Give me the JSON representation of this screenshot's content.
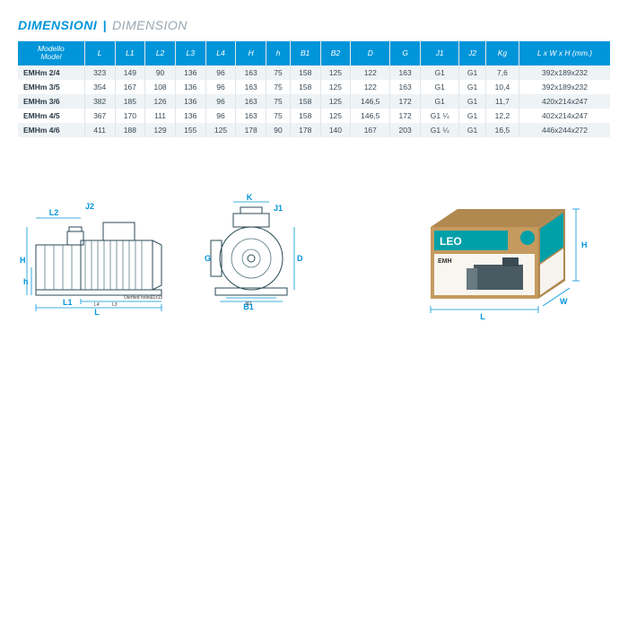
{
  "title": {
    "it": "DIMENSIONI",
    "en": "DIMENSION",
    "sep": "|"
  },
  "table": {
    "header_bg": "#0095d9",
    "columns": [
      {
        "key": "model",
        "it": "Modello",
        "en": "Model"
      },
      {
        "key": "L",
        "label": "L"
      },
      {
        "key": "L1",
        "label": "L1"
      },
      {
        "key": "L2",
        "label": "L2"
      },
      {
        "key": "L3",
        "label": "L3"
      },
      {
        "key": "L4",
        "label": "L4"
      },
      {
        "key": "H",
        "label": "H"
      },
      {
        "key": "h",
        "label": "h"
      },
      {
        "key": "B1",
        "label": "B1"
      },
      {
        "key": "B2",
        "label": "B2"
      },
      {
        "key": "D",
        "label": "D"
      },
      {
        "key": "G",
        "label": "G"
      },
      {
        "key": "J1",
        "label": "J1"
      },
      {
        "key": "J2",
        "label": "J2"
      },
      {
        "key": "Kg",
        "label": "Kg"
      },
      {
        "key": "dims",
        "label": "L x W x H (mm.)"
      }
    ],
    "rows": [
      [
        "EMHm 2/4",
        "323",
        "149",
        "90",
        "136",
        "96",
        "163",
        "75",
        "158",
        "125",
        "122",
        "163",
        "G1",
        "G1",
        "7,6",
        "392x189x232"
      ],
      [
        "EMHm 3/5",
        "354",
        "167",
        "108",
        "136",
        "96",
        "163",
        "75",
        "158",
        "125",
        "122",
        "163",
        "G1",
        "G1",
        "10,4",
        "392x189x232"
      ],
      [
        "EMHm 3/6",
        "382",
        "185",
        "126",
        "136",
        "96",
        "163",
        "75",
        "158",
        "125",
        "146,5",
        "172",
        "G1",
        "G1",
        "11,7",
        "420x214x247"
      ],
      [
        "EMHm 4/5",
        "367",
        "170",
        "111",
        "136",
        "96",
        "163",
        "75",
        "158",
        "125",
        "146,5",
        "172",
        "G1 ¼",
        "G1",
        "12,2",
        "402x214x247"
      ],
      [
        "EMHm 4/6",
        "411",
        "188",
        "129",
        "155",
        "125",
        "178",
        "90",
        "178",
        "140",
        "167",
        "203",
        "G1 ¼",
        "G1",
        "16,5",
        "446x244x272"
      ]
    ]
  },
  "drawings": {
    "side": {
      "L": "L",
      "L1": "L1",
      "L2": "L2",
      "L3": "L3",
      "L4": "L4",
      "H": "H",
      "h": "h",
      "J2": "J2",
      "holes": "Oierfied holes",
      "holesize": "11x15"
    },
    "front": {
      "K": "K",
      "J1": "J1",
      "D": "D",
      "G": "G",
      "B1": "B1",
      "B2": "B2"
    },
    "box": {
      "brand": "LEO",
      "model": "EMH",
      "L": "L",
      "W": "W",
      "H": "H"
    }
  }
}
